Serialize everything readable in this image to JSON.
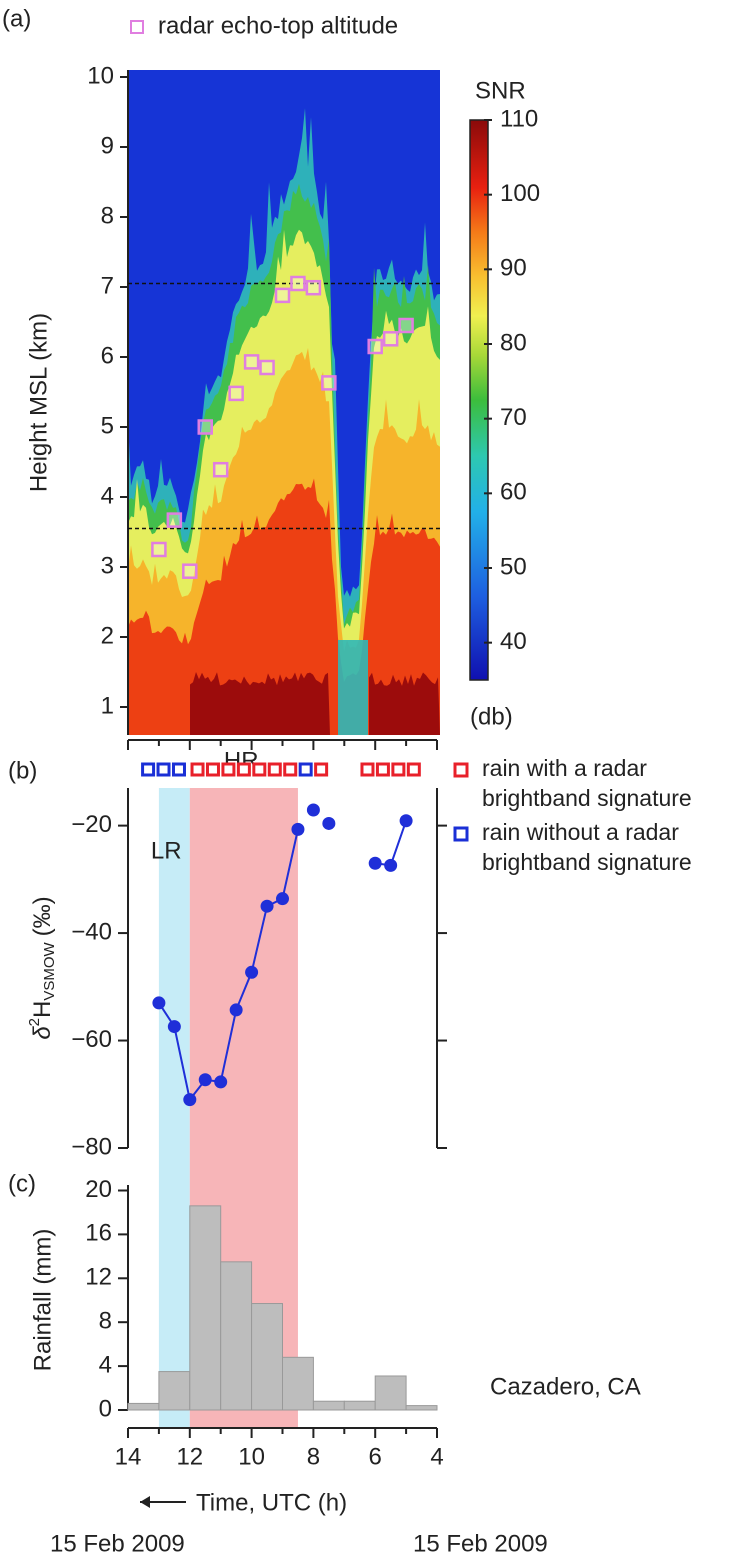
{
  "chart_data": [
    {
      "type": "heatmap",
      "panel_label": "(a)",
      "ylabel": "Height MSL (km)",
      "ylim": [
        0.6,
        10.1
      ],
      "yticks": [
        1,
        2,
        3,
        4,
        5,
        6,
        7,
        8,
        9,
        10
      ],
      "reference_lines": [
        7.05,
        3.55
      ],
      "series": [
        {
          "name": "radar echo-top altitude",
          "color": "#e07ee0",
          "x": [
            13,
            12.5,
            12,
            11.5,
            11,
            10.5,
            10,
            9.5,
            9,
            8.5,
            8,
            7.5,
            6,
            5.5,
            5
          ],
          "values": [
            3.25,
            3.67,
            2.94,
            5.0,
            4.39,
            5.48,
            5.93,
            5.85,
            6.88,
            7.05,
            6.99,
            5.63,
            6.15,
            6.26,
            6.45
          ]
        }
      ],
      "colorbar": {
        "title": "SNR",
        "unit": "(db)",
        "lim": [
          35,
          110
        ],
        "ticks": [
          40,
          50,
          60,
          70,
          80,
          90,
          100,
          110
        ]
      }
    },
    {
      "type": "line",
      "panel_label": "(b)",
      "ylabel": {
        "symbol": "δ",
        "superscript": "2",
        "base": "H",
        "subscript": "VSMOW",
        "unit": "(‰)"
      },
      "ylim": [
        -80,
        -13
      ],
      "yticks": [
        {
          "value": -80,
          "label": "−80"
        },
        {
          "value": -60,
          "label": "−60"
        },
        {
          "value": -40,
          "label": "−40"
        },
        {
          "value": -20,
          "label": "−20"
        }
      ],
      "color": "#1f2fd8",
      "x": [
        13,
        12.5,
        12,
        11.5,
        11,
        10.5,
        10,
        9.5,
        9,
        8.5,
        null,
        8,
        null,
        7.5,
        null,
        6,
        5.5,
        5
      ],
      "values": [
        -53,
        -57.4,
        -71,
        -67.3,
        -67.7,
        -54.3,
        -47.3,
        -35,
        -33.6,
        -20.7,
        null,
        -17.1,
        null,
        -19.6,
        null,
        -27,
        -27.4,
        -19.1
      ],
      "brightband": [
        {
          "name": "rain with a radar brightband signature",
          "color": "#e8202a",
          "x": [
            11.75,
            11.25,
            10.75,
            10.25,
            9.75,
            9.25,
            8.75,
            7.75,
            6.25,
            5.75,
            5.25,
            4.75
          ]
        },
        {
          "name": "rain without a radar brightband signature",
          "color": "#1a2fd6",
          "x": [
            13.35,
            12.85,
            12.35,
            8.25
          ]
        }
      ],
      "spans": [
        {
          "label": "LR",
          "from": 13,
          "to": 12,
          "color": "#c6ecf7"
        },
        {
          "label": "HR",
          "from": 12,
          "to": 8.5,
          "color": "#f7b5b8"
        }
      ]
    },
    {
      "type": "histogram",
      "panel_label": "(c)",
      "ylabel": "Rainfall (mm)",
      "ylim": [
        0,
        20.5
      ],
      "yticks": [
        0,
        4,
        8,
        12,
        16,
        20
      ],
      "color": "#bdbdbd",
      "bins": [
        14,
        13,
        12,
        11,
        10,
        9,
        8,
        7,
        6,
        5,
        4
      ],
      "values": [
        0.6,
        3.5,
        18.6,
        13.5,
        9.7,
        4.8,
        0.8,
        0.8,
        3.1,
        0.4
      ],
      "xlim": [
        14,
        4
      ],
      "xticks": [
        14,
        12,
        10,
        8,
        6,
        4
      ],
      "xminor_ticks": [
        13,
        11,
        9,
        7,
        5
      ],
      "xlabel": "Time, UTC (h)",
      "annotation": "Cazadero, CA",
      "date_labels": [
        "15 Feb 2009",
        "15 Feb 2009"
      ]
    }
  ]
}
